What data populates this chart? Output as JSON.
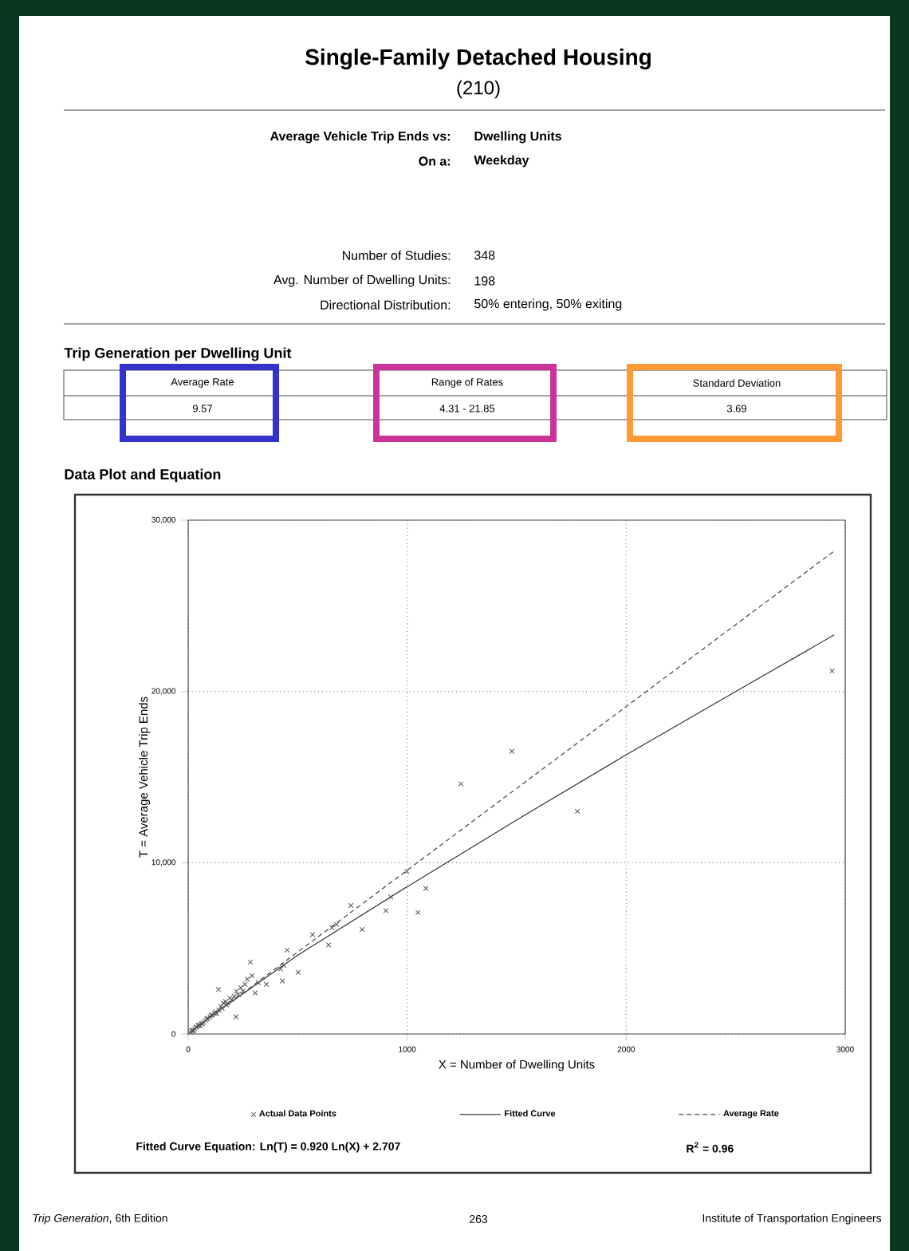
{
  "chart_data": {
    "type": "scatter",
    "title": "Single-Family Detached Housing",
    "subtitle": "(210)",
    "xlabel": "X = Number of Dwelling Units",
    "ylabel": "T = Average Vehicle Trip Ends",
    "xlim": [
      0,
      3000
    ],
    "xticks": [
      0,
      1000,
      2000,
      3000
    ],
    "ylim": [
      0,
      30000
    ],
    "yticks": [
      0,
      {
        "value": 10000,
        "label": "10,000"
      },
      {
        "value": 20000,
        "label": "20,000"
      },
      {
        "value": 30000,
        "label": "30,000"
      }
    ],
    "grid": true,
    "legend": "bottom",
    "series": [
      {
        "name": "Actual Data Points",
        "type": "scatter",
        "marker": "cross",
        "color": "#555555",
        "x": [
          10,
          15,
          20,
          25,
          30,
          35,
          40,
          45,
          50,
          55,
          60,
          65,
          70,
          80,
          85,
          90,
          100,
          105,
          110,
          120,
          125,
          130,
          138,
          140,
          150,
          155,
          160,
          170,
          175,
          180,
          190,
          200,
          210,
          218,
          220,
          230,
          240,
          250,
          260,
          270,
          284,
          291,
          306,
          320,
          357,
          422,
          430,
          437,
          452,
          502,
          568,
          641,
          656,
          677,
          743,
          794,
          903,
          925,
          998,
          1049,
          1085,
          1245,
          1478,
          1777,
          2940
        ],
        "values": [
          100,
          200,
          200,
          200,
          300,
          400,
          400,
          500,
          500,
          500,
          600,
          600,
          700,
          800,
          900,
          900,
          1000,
          1100,
          1100,
          1200,
          1300,
          1200,
          2600,
          1400,
          1600,
          1500,
          1800,
          1900,
          1700,
          1800,
          2100,
          2000,
          2200,
          1000,
          2500,
          2300,
          2700,
          2500,
          2900,
          3200,
          4200,
          3400,
          2400,
          3000,
          2900,
          3800,
          3100,
          4000,
          4900,
          3600,
          5800,
          5200,
          6200,
          6400,
          7500,
          6100,
          7200,
          8000,
          9500,
          7100,
          8500,
          14600,
          16500,
          13000,
          21200
        ]
      },
      {
        "name": "Fitted Curve",
        "type": "line",
        "marker": "none",
        "line_style": "solid",
        "color": "#333333",
        "x": [
          10,
          100,
          500,
          1000,
          1500,
          2000,
          2500,
          2950
        ],
        "values": [
          100,
          1000,
          4600,
          8600,
          12500,
          16300,
          20000,
          23300
        ]
      },
      {
        "name": "Average Rate",
        "type": "line",
        "marker": "none",
        "line_style": "dashed",
        "color": "#444444",
        "x": [
          10,
          2950
        ],
        "values": [
          100,
          28200
        ]
      }
    ],
    "annotations": [
      "Average Vehicle Trip Ends vs:",
      "Dwelling Units",
      "On a:",
      "Weekday",
      "Number of Studies:",
      "348",
      "Avg. Number of Dwelling Units:",
      "198",
      "Directional Distribution:",
      "50% entering, 50% exiting",
      "Trip Generation per Dwelling Unit",
      "Average Rate",
      "9.57",
      "Range of Rates",
      "4.31 - 21.85",
      "Standard Deviation",
      "3.69",
      "Data Plot and Equation",
      "Fitted Curve Equation:  Ln(T) = 0.920 Ln(X) + 2.707",
      "R$^{2}$ = 0.96",
      "*Trip Generation*, 6th Edition",
      "263",
      "Institute of Transportation Engineers"
    ]
  }
}
